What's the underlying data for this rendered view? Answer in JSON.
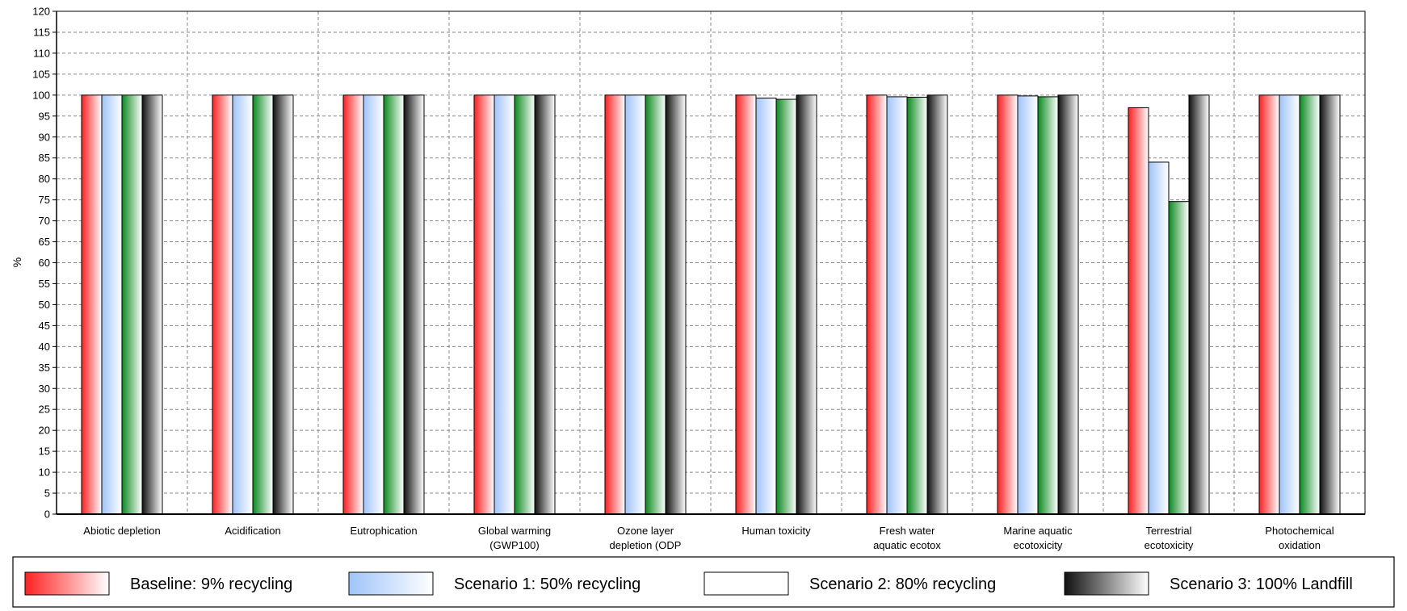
{
  "chart_data": {
    "type": "bar",
    "ylabel": "%",
    "ylim": [
      0,
      120
    ],
    "ytick_step": 5,
    "grid": true,
    "legend_position": "bottom",
    "categories": [
      [
        "Abiotic depletion"
      ],
      [
        "Acidification"
      ],
      [
        "Eutrophication"
      ],
      [
        "Global warming",
        "(GWP100)"
      ],
      [
        "Ozone layer",
        "depletion (ODP"
      ],
      [
        "Human toxicity"
      ],
      [
        "Fresh water",
        "aquatic ecotox"
      ],
      [
        "Marine aquatic",
        "ecotoxicity"
      ],
      [
        "Terrestrial",
        "ecotoxicity"
      ],
      [
        "Photochemical",
        "oxidation"
      ]
    ],
    "series": [
      {
        "name": "Baseline: 9% recycling",
        "color": "#ff2020",
        "values": [
          100,
          100,
          100,
          100,
          100,
          100,
          100,
          100,
          97,
          100
        ]
      },
      {
        "name": "Scenario 1: 50% recycling",
        "color": "#9fc4fa",
        "values": [
          100,
          100,
          100,
          100,
          100,
          99.3,
          99.6,
          99.8,
          84,
          100
        ]
      },
      {
        "name": "Scenario 2: 80% recycling",
        "color": "#0a8a1e",
        "values": [
          100,
          100,
          100,
          100,
          100,
          99,
          99.5,
          99.6,
          74.6,
          100
        ]
      },
      {
        "name": "Scenario 3: 100% Landfill",
        "color": "#101010",
        "values": [
          100,
          100,
          100,
          100,
          100,
          100,
          100,
          100,
          100,
          100
        ]
      }
    ]
  }
}
